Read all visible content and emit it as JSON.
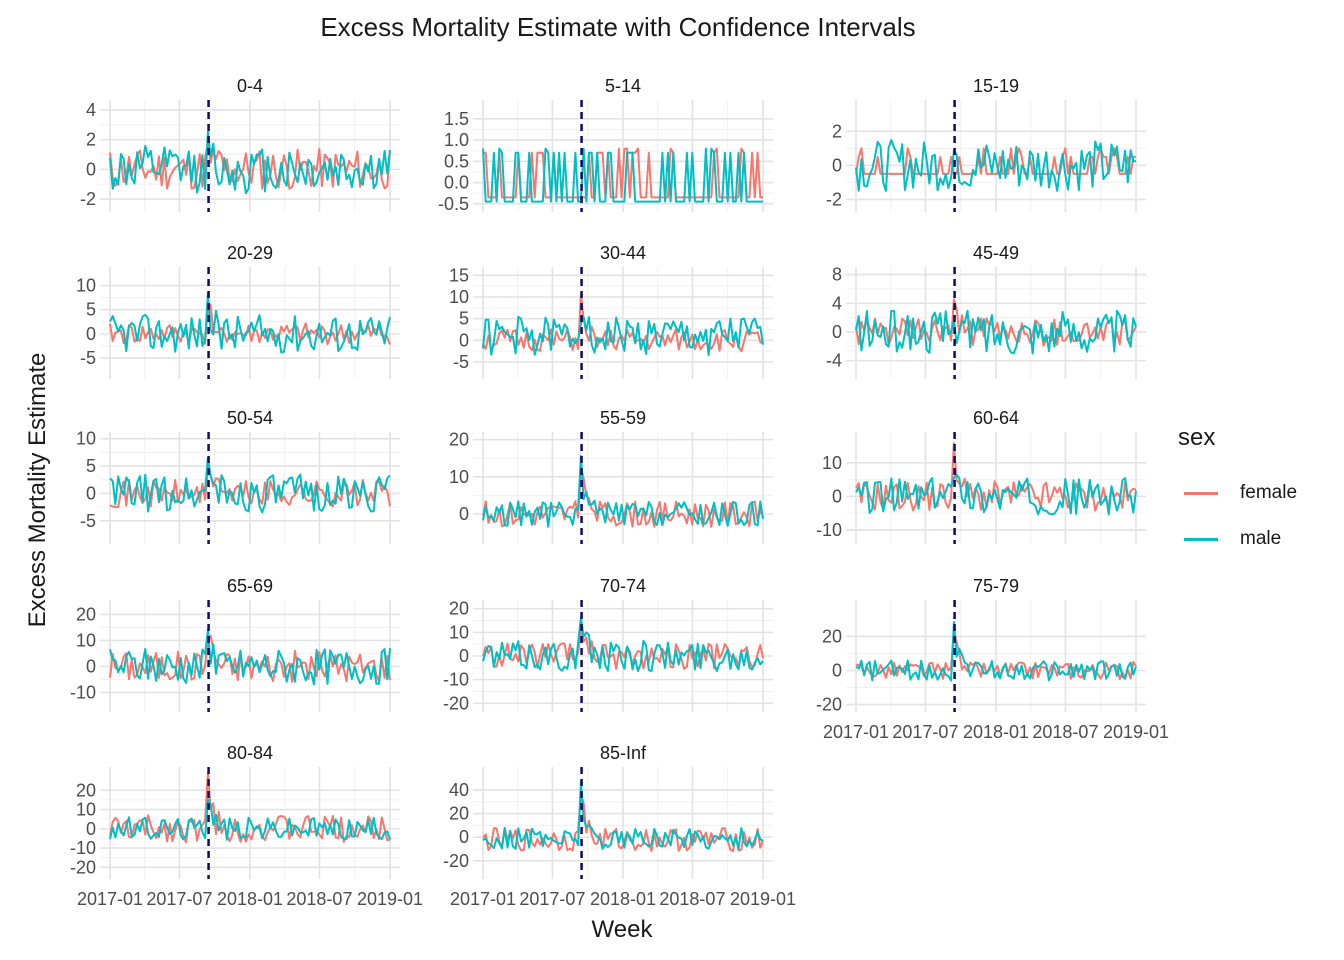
{
  "chart_data": {
    "type": "line",
    "title": "Excess Mortality Estimate with Confidence Intervals",
    "xlabel": "Week",
    "ylabel": "Excess Mortality Estimate",
    "x_tick_labels": [
      "2017-01",
      "2017-07",
      "2018-01",
      "2018-07",
      "2019-01"
    ],
    "x_range": [
      "2017-01-01",
      "2019-01-01"
    ],
    "vline": {
      "date": "2017-09-15",
      "style": "dashed",
      "color": "#0b0b6b"
    },
    "grid": true,
    "legend": {
      "title": "sex",
      "position": "right",
      "entries": [
        {
          "name": "female",
          "color": "#F8766D"
        },
        {
          "name": "male",
          "color": "#00BFC4"
        }
      ]
    },
    "series_names": [
      "female",
      "male"
    ],
    "panels": [
      {
        "label": "0-4",
        "ylim": [
          -2.6,
          4.4
        ],
        "yticks": [
          -2,
          0,
          2,
          4
        ],
        "spike": 1.5,
        "female": {
          "base": 0,
          "amp": 1.4,
          "seed": 11
        },
        "male": {
          "base": 0,
          "amp": 1.6,
          "seed": 12
        }
      },
      {
        "label": "5-14",
        "ylim": [
          -0.6,
          1.85
        ],
        "yticks": [
          -0.5,
          0,
          0.5,
          1,
          1.5
        ],
        "ytick_labels": [
          "-0.5",
          "0.0",
          "0.5",
          "1.0",
          "1.5"
        ],
        "spike": 0.8,
        "female": {
          "base": -0.3,
          "amp": 1.0,
          "seed": 21,
          "kind": "binary",
          "low": -0.35,
          "high": 0.7
        },
        "male": {
          "base": -0.45,
          "amp": 0.6,
          "seed": 22,
          "kind": "binary",
          "low": -0.45,
          "high": 0.7
        }
      },
      {
        "label": "15-19",
        "ylim": [
          -2.5,
          3.6
        ],
        "yticks": [
          -2,
          0,
          2
        ],
        "spike": 1,
        "female": {
          "base": -0.3,
          "amp": 0.9,
          "seed": 31,
          "kind": "binary",
          "low": -0.5,
          "high": 0.5
        },
        "male": {
          "base": 0,
          "amp": 1.5,
          "seed": 32
        }
      },
      {
        "label": "20-29",
        "ylim": [
          -8.5,
          13
        ],
        "yticks": [
          -5,
          0,
          5,
          10
        ],
        "spike": 8,
        "female": {
          "base": 0,
          "amp": 2.2,
          "seed": 41
        },
        "male": {
          "base": 0,
          "amp": 4.0,
          "seed": 42
        }
      },
      {
        "label": "30-44",
        "ylim": [
          -8,
          16
        ],
        "yticks": [
          -5,
          0,
          5,
          10,
          15
        ],
        "spike": 10,
        "female": {
          "base": 0,
          "amp": 2.6,
          "seed": 51
        },
        "male": {
          "base": 1,
          "amp": 4.5,
          "seed": 52
        }
      },
      {
        "label": "45-49",
        "ylim": [
          -6,
          8.5
        ],
        "yticks": [
          -4,
          0,
          4,
          8
        ],
        "spike": 3,
        "female": {
          "base": 0,
          "amp": 2.0,
          "seed": 61
        },
        "male": {
          "base": 0,
          "amp": 3.0,
          "seed": 62
        }
      },
      {
        "label": "50-54",
        "ylim": [
          -8.5,
          10.5
        ],
        "yticks": [
          -5,
          0,
          5,
          10
        ],
        "spike": 7,
        "female": {
          "base": 0,
          "amp": 2.5,
          "seed": 71
        },
        "male": {
          "base": 0,
          "amp": 3.5,
          "seed": 72
        }
      },
      {
        "label": "55-59",
        "ylim": [
          -7,
          21
        ],
        "yticks": [
          0,
          10,
          20
        ],
        "spike": 17,
        "female": {
          "base": 0,
          "amp": 3.5,
          "seed": 81
        },
        "male": {
          "base": 0,
          "amp": 3.5,
          "seed": 82
        }
      },
      {
        "label": "60-64",
        "ylim": [
          -13,
          18
        ],
        "yticks": [
          -10,
          0,
          10
        ],
        "spike": 14,
        "female": {
          "base": 0,
          "amp": 4.5,
          "seed": 91
        },
        "male": {
          "base": 0,
          "amp": 5.5,
          "seed": 92
        }
      },
      {
        "label": "65-69",
        "ylim": [
          -16,
          24
        ],
        "yticks": [
          -10,
          0,
          10,
          20
        ],
        "spike": 17,
        "female": {
          "base": 0,
          "amp": 6,
          "seed": 101
        },
        "male": {
          "base": 0,
          "amp": 7,
          "seed": 102
        }
      },
      {
        "label": "70-74",
        "ylim": [
          -22,
          22
        ],
        "yticks": [
          -20,
          -10,
          0,
          10,
          20
        ],
        "spike": 17,
        "female": {
          "base": 0,
          "amp": 5.5,
          "seed": 111
        },
        "male": {
          "base": 0,
          "amp": 6.5,
          "seed": 112
        }
      },
      {
        "label": "75-79",
        "ylim": [
          -22,
          39
        ],
        "yticks": [
          -20,
          0,
          20
        ],
        "spike": 30,
        "female": {
          "base": 0,
          "amp": 5,
          "seed": 121
        },
        "male": {
          "base": 0,
          "amp": 6,
          "seed": 122
        }
      },
      {
        "label": "80-84",
        "ylim": [
          -24,
          30
        ],
        "yticks": [
          -20,
          -10,
          0,
          10,
          20
        ],
        "spike": 27,
        "female": {
          "base": 0,
          "amp": 7,
          "seed": 131
        },
        "male": {
          "base": 0,
          "amp": 6,
          "seed": 132
        }
      },
      {
        "label": "85-Inf",
        "ylim": [
          -32,
          56
        ],
        "yticks": [
          -20,
          0,
          20,
          40
        ],
        "spike": 52,
        "female": {
          "base": -2,
          "amp": 10,
          "seed": 141
        },
        "male": {
          "base": -1,
          "amp": 9,
          "seed": 142
        }
      }
    ]
  }
}
